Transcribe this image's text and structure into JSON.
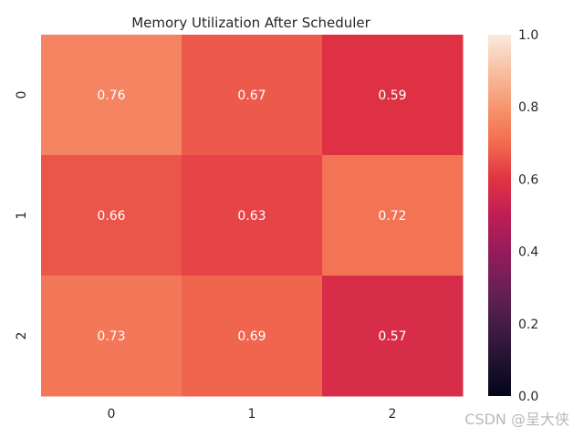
{
  "chart_data": {
    "type": "heatmap",
    "title": "Memory Utilization After Scheduler",
    "x_categories": [
      "0",
      "1",
      "2"
    ],
    "y_categories": [
      "0",
      "1",
      "2"
    ],
    "values": [
      [
        0.76,
        0.67,
        0.59
      ],
      [
        0.66,
        0.63,
        0.72
      ],
      [
        0.73,
        0.69,
        0.57
      ]
    ],
    "annotations": true,
    "annotation_color": "#ffffff",
    "colorbar": {
      "range": [
        0.0,
        1.0
      ],
      "ticks": [
        "0.0",
        "0.2",
        "0.4",
        "0.6",
        "0.8",
        "1.0"
      ],
      "colormap": "rocket"
    },
    "grid": false
  },
  "watermark": "CSDN @呈大侠"
}
